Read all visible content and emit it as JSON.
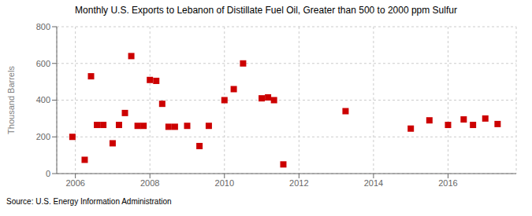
{
  "chart_data": {
    "type": "scatter",
    "title": "Monthly U.S. Exports to Lebanon of Distillate Fuel Oil, Greater than 500 to 2000 ppm Sulfur",
    "y_label": "Thousand Barrels",
    "annotations": [
      "Source: U.S. Energy Information Administration"
    ],
    "x": [
      2005.92,
      2006.25,
      2006.42,
      2006.58,
      2006.75,
      2007.0,
      2007.17,
      2007.33,
      2007.5,
      2007.67,
      2007.83,
      2008.0,
      2008.17,
      2008.33,
      2008.5,
      2008.67,
      2009.0,
      2009.33,
      2009.58,
      2010.0,
      2010.25,
      2010.5,
      2011.0,
      2011.17,
      2011.33,
      2011.58,
      2013.25,
      2015.0,
      2015.5,
      2016.0,
      2016.42,
      2016.67,
      2017.0,
      2017.33
    ],
    "values": [
      200,
      75,
      530,
      265,
      265,
      165,
      265,
      330,
      640,
      260,
      260,
      510,
      505,
      380,
      255,
      255,
      260,
      150,
      260,
      400,
      460,
      600,
      410,
      415,
      400,
      50,
      340,
      245,
      290,
      265,
      295,
      265,
      300,
      270
    ],
    "color": "#cc0000",
    "marker": "square",
    "xlim": [
      2005.5,
      2017.83
    ],
    "ylim": [
      0,
      800
    ],
    "xticks": [
      2006,
      2008,
      2010,
      2012,
      2014,
      2016
    ],
    "yticks": [
      0,
      200,
      400,
      600,
      800
    ],
    "grid": true
  }
}
